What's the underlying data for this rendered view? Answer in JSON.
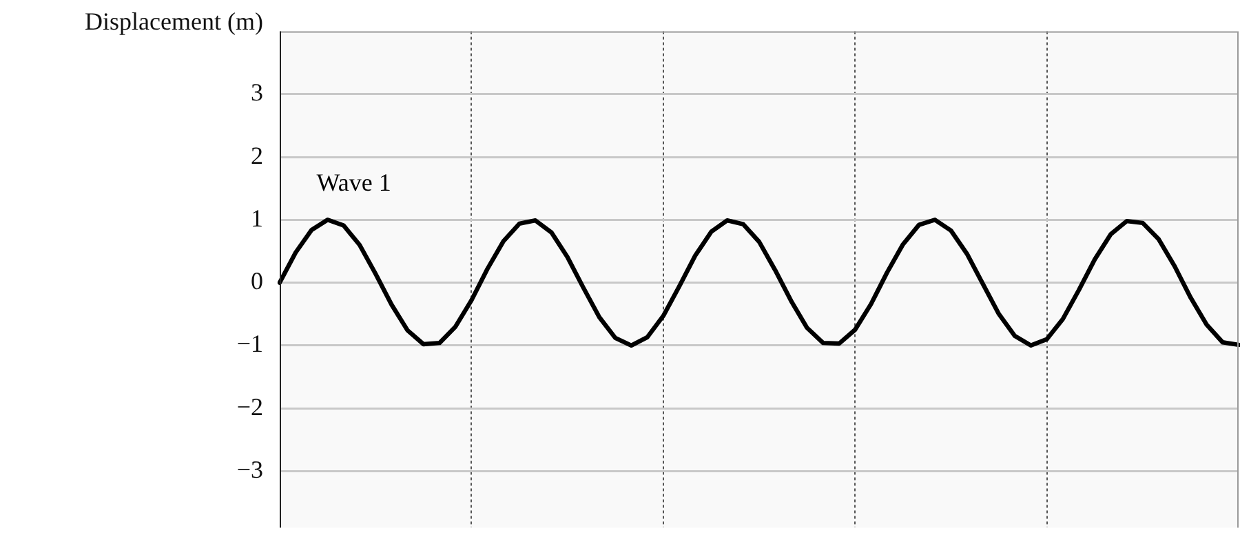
{
  "chart_data": {
    "type": "line",
    "ylabel": "Displacement (m)",
    "categories": [
      null,
      null,
      null,
      null,
      null,
      null,
      null,
      null,
      null,
      null,
      null,
      null,
      null,
      null,
      null,
      null,
      null,
      null,
      null,
      null,
      null,
      null,
      null,
      null,
      null,
      null,
      null,
      null,
      null,
      null,
      null,
      null,
      null,
      null,
      null,
      null,
      null,
      null,
      null,
      null,
      null,
      null,
      null,
      null,
      null,
      null,
      null,
      null,
      null,
      null,
      null,
      null,
      null,
      null,
      null,
      null,
      null,
      null,
      null,
      null,
      null
    ],
    "ylim": [
      -3.9,
      4
    ],
    "yticks": [
      {
        "value": -3,
        "label": "−3"
      },
      {
        "value": -2,
        "label": "−2"
      },
      {
        "value": -1,
        "label": "−1"
      },
      0,
      1,
      2,
      3
    ],
    "tick_labels": "y",
    "grid": true,
    "marker": "none",
    "line_style": "solid",
    "series": [
      {
        "name": "Wave 1",
        "color": "#000000",
        "values": [
          0,
          0.48,
          0.84,
          1,
          0.91,
          0.6,
          0.14,
          -0.35,
          -0.76,
          -0.98,
          -0.96,
          -0.7,
          -0.28,
          0.22,
          0.66,
          0.94,
          0.99,
          0.8,
          0.41,
          -0.08,
          -0.55,
          -0.88,
          -1,
          -0.87,
          -0.53,
          -0.06,
          0.43,
          0.81,
          0.99,
          0.93,
          0.65,
          0.2,
          -0.29,
          -0.72,
          -0.96,
          -0.97,
          -0.75,
          -0.34,
          0.16,
          0.61,
          0.92,
          1,
          0.83,
          0.46,
          -0.02,
          -0.5,
          -0.85,
          -1,
          -0.9,
          -0.58,
          -0.12,
          0.37,
          0.77,
          0.98,
          0.95,
          0.69,
          0.26,
          -0.24,
          -0.67,
          -0.95,
          -0.99
        ]
      }
    ]
  }
}
